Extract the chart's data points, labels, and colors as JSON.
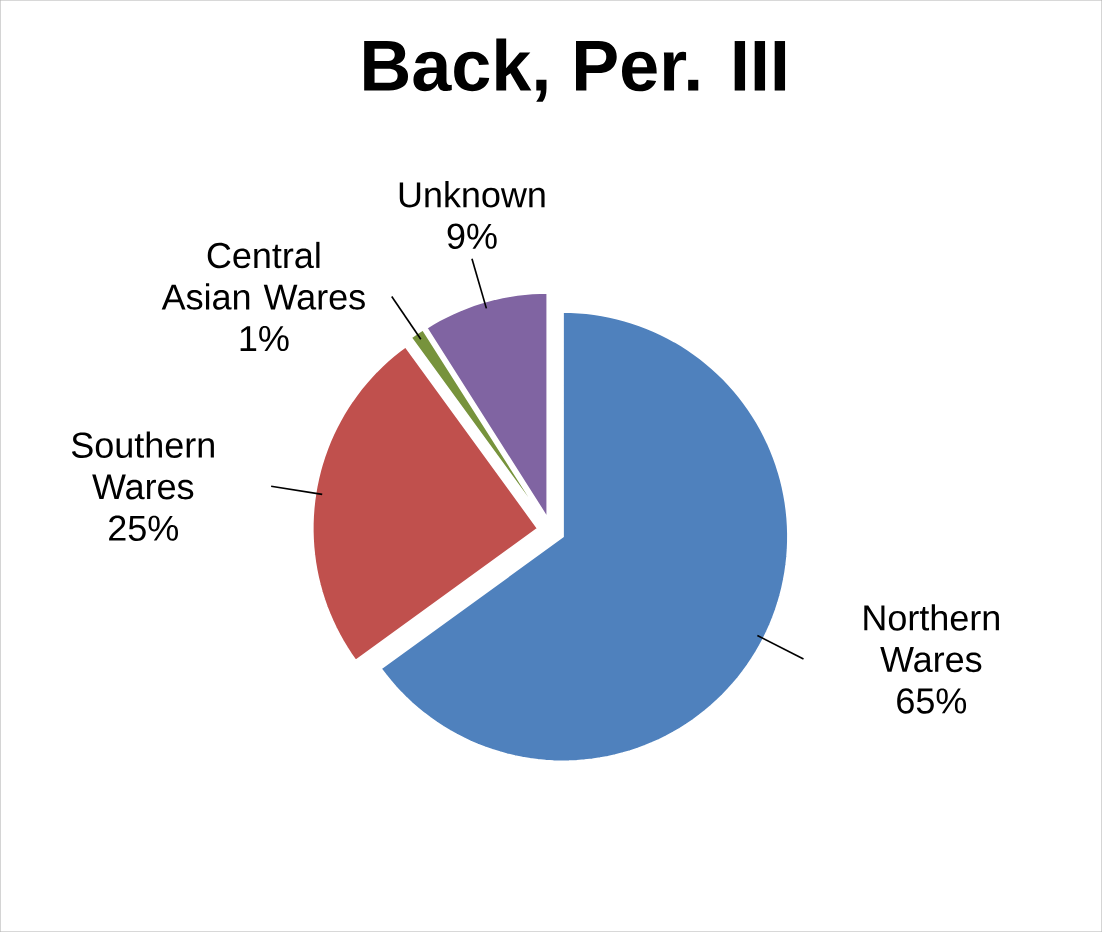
{
  "chart_data": {
    "type": "pie",
    "title": "Back, Per. III",
    "categories": [
      "Northern Wares",
      "Southern Wares",
      "Central Asian Wares",
      "Unknown"
    ],
    "values": [
      65,
      25,
      1,
      9
    ],
    "value_labels": [
      "65%",
      "25%",
      "1%",
      "9%"
    ],
    "colors": [
      "#4f81bd",
      "#c0504d",
      "#77933c",
      "#8064a2"
    ],
    "legend": false
  }
}
